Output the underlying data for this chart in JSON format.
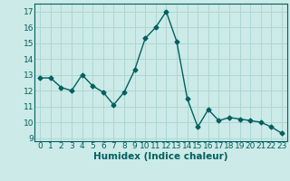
{
  "x": [
    0,
    1,
    2,
    3,
    4,
    5,
    6,
    7,
    8,
    9,
    10,
    11,
    12,
    13,
    14,
    15,
    16,
    17,
    18,
    19,
    20,
    21,
    22,
    23
  ],
  "y": [
    12.8,
    12.8,
    12.2,
    12.0,
    13.0,
    12.3,
    11.9,
    11.1,
    11.9,
    13.3,
    15.3,
    16.0,
    17.0,
    15.1,
    11.5,
    9.7,
    10.8,
    10.1,
    10.3,
    10.2,
    10.1,
    10.0,
    9.7,
    9.3
  ],
  "line_color": "#006060",
  "bg_color": "#cceae7",
  "grid_color": "#aad4d0",
  "xlabel": "Humidex (Indice chaleur)",
  "ylim": [
    8.8,
    17.5
  ],
  "xlim": [
    -0.5,
    23.5
  ],
  "yticks": [
    9,
    10,
    11,
    12,
    13,
    14,
    15,
    16,
    17
  ],
  "xticks": [
    0,
    1,
    2,
    3,
    4,
    5,
    6,
    7,
    8,
    9,
    10,
    11,
    12,
    13,
    14,
    15,
    16,
    17,
    18,
    19,
    20,
    21,
    22,
    23
  ],
  "marker": "D",
  "marker_size": 2.5,
  "line_width": 1.0,
  "font_size": 6.5,
  "xlabel_fontsize": 7.5
}
